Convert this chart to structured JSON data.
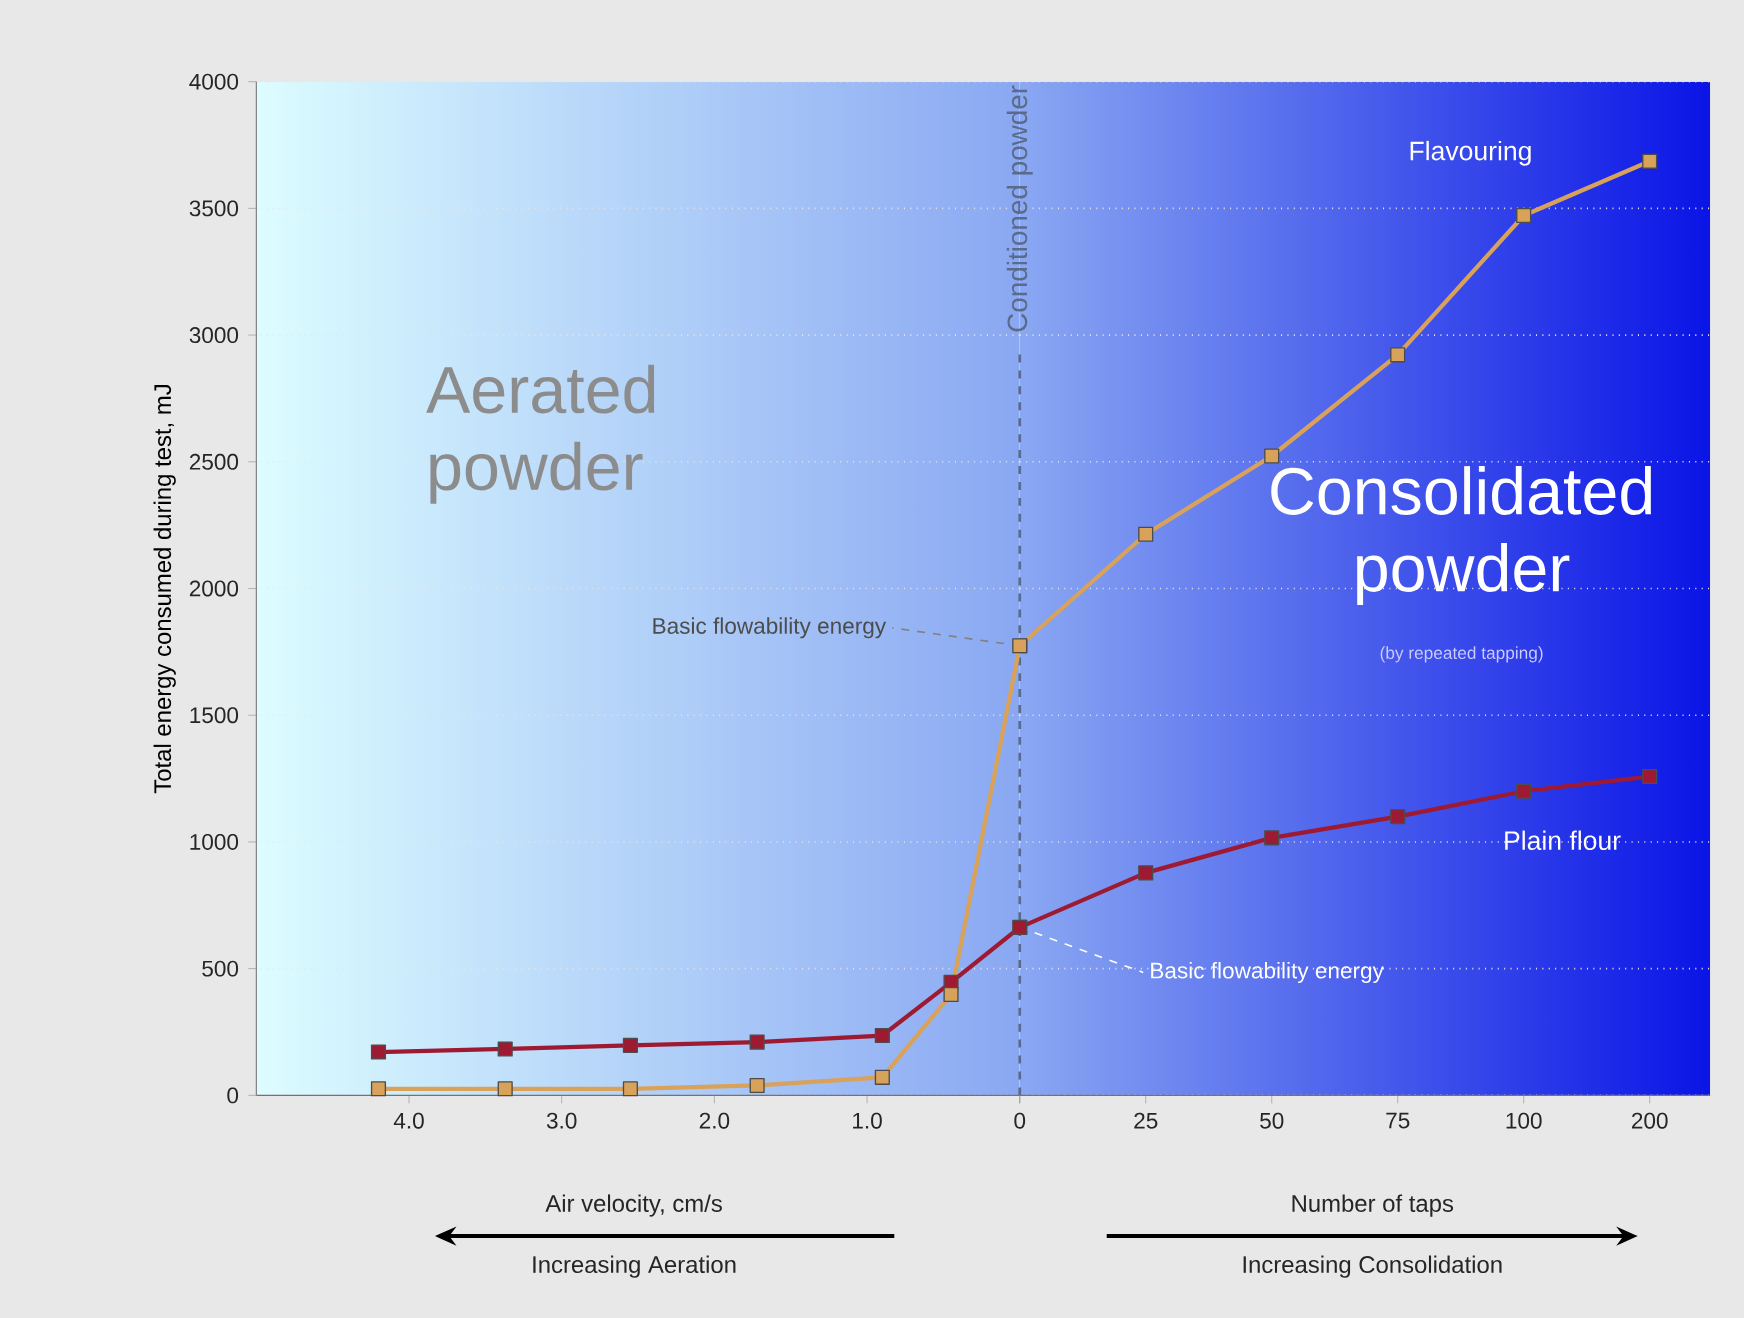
{
  "chart_data": [
    {
      "type": "line",
      "ylabel": "Total energy consumed during test, mJ",
      "x": [
        4.2,
        3.37,
        2.55,
        1.72,
        0.9,
        0.45,
        0
      ],
      "series": [
        {
          "color": "#9e1a32",
          "values": [
            171,
            183,
            197,
            210,
            236,
            446,
            663
          ]
        },
        {
          "color": "#d9a25a",
          "values": [
            26,
            26,
            26,
            39,
            71,
            398,
            1774
          ]
        }
      ],
      "xlim": [
        5,
        0
      ],
      "xticks": [
        {
          "value": 4,
          "label": "4.0"
        },
        {
          "value": 3,
          "label": "3.0"
        },
        {
          "value": 2,
          "label": "2.0"
        },
        {
          "value": 1,
          "label": "1.0"
        },
        0
      ],
      "ylim": [
        0,
        4000
      ],
      "yticks": [
        0,
        500,
        1000,
        1500,
        2000,
        2500,
        3000,
        3500,
        4000
      ],
      "grid": "y",
      "marker": "square",
      "line_style": "solid",
      "ref_lines": [
        {
          "axis": "x",
          "value": 0,
          "label": "Conditioned powder",
          "color": "#5a6a8a",
          "line_style": "dashed"
        }
      ],
      "annotations": [
        "Aerated powder",
        {
          "text": "Basic flowability energy",
          "x": 0,
          "y": 1774
        },
        {
          "text": "Basic flowability energy",
          "x": 0,
          "y": 663
        },
        "Air velocity, cm/s",
        "Increasing Aeration"
      ]
    },
    {
      "type": "line",
      "categories": [
        null,
        "25",
        "50",
        "75",
        "100",
        "200"
      ],
      "series": [
        {
          "name": "Plain flour",
          "color": "#9e1a32",
          "values": [
            663,
            878,
            1016,
            1100,
            1200,
            1258
          ]
        },
        {
          "name": "Flavouring",
          "color": "#d9a25a",
          "values": [
            1774,
            2214,
            2523,
            2922,
            3472,
            3686
          ]
        }
      ],
      "ylim": [
        0,
        4000
      ],
      "yticks": [
        0,
        500,
        1000,
        1500,
        2000,
        2500,
        3000,
        3500,
        4000
      ],
      "tick_labels": "x",
      "grid": "y",
      "marker": "square",
      "line_style": "solid",
      "annotations": [
        "Consolidated powder",
        "(by repeated tapping)",
        "Number of taps",
        "Increasing Consolidation"
      ]
    }
  ]
}
